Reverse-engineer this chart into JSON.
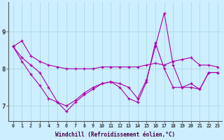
{
  "xlabel": "Windchill (Refroidissement éolien,°C)",
  "background_color": "#cceeff",
  "line_color": "#aa00aa",
  "hours": [
    0,
    1,
    2,
    3,
    4,
    5,
    6,
    7,
    8,
    9,
    10,
    11,
    12,
    13,
    14,
    15,
    16,
    17,
    18,
    19,
    20,
    21,
    22,
    23
  ],
  "line1": [
    8.6,
    8.75,
    8.35,
    8.2,
    8.1,
    8.05,
    8.0,
    8.0,
    8.0,
    8.0,
    8.05,
    8.05,
    8.05,
    8.05,
    8.05,
    8.1,
    8.15,
    8.1,
    8.2,
    8.25,
    8.3,
    8.1,
    8.1,
    8.05
  ],
  "line2": [
    8.6,
    8.3,
    8.1,
    7.9,
    7.5,
    7.1,
    7.0,
    7.15,
    7.35,
    7.5,
    7.6,
    7.65,
    7.6,
    7.5,
    7.2,
    7.7,
    8.6,
    9.5,
    8.1,
    7.5,
    7.6,
    7.45,
    7.9,
    7.9
  ],
  "line3": [
    8.6,
    8.2,
    7.85,
    7.55,
    7.2,
    7.1,
    6.85,
    7.1,
    7.3,
    7.45,
    7.6,
    7.65,
    7.5,
    7.2,
    7.1,
    7.65,
    8.7,
    8.0,
    7.5,
    7.5,
    7.5,
    7.45,
    7.9,
    7.9
  ],
  "ylim_min": 6.6,
  "ylim_max": 9.8,
  "yticks": [
    7,
    8,
    9
  ],
  "grid_color": "#aadddd",
  "figwidth": 3.2,
  "figheight": 2.0,
  "dpi": 100
}
